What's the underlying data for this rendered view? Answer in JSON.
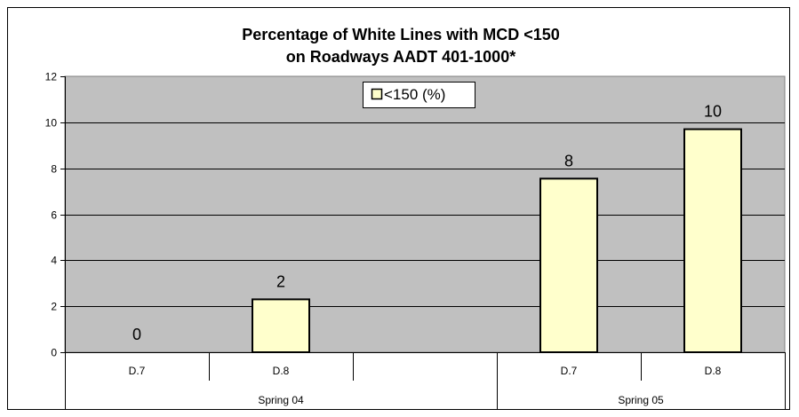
{
  "chart_data": {
    "type": "bar",
    "title_line1": "Percentage of White Lines with MCD <150",
    "title_line2": "on Roadways AADT 401-1000*",
    "legend": {
      "label": "<150 (%)",
      "placement": "top-center"
    },
    "series": [
      {
        "name": "<150 (%)",
        "color": "#ffffcc",
        "values": [
          0.0,
          2.3,
          null,
          7.55,
          9.7
        ]
      }
    ],
    "data_labels": [
      "0",
      "2",
      "",
      "8",
      "10"
    ],
    "categories": [
      "D.7",
      "D.8",
      "",
      "D.7",
      "D.8"
    ],
    "groups": [
      {
        "label": "Spring 04",
        "span": 3
      },
      {
        "label": "Spring 05",
        "span": 2
      }
    ],
    "yticks": [
      "0",
      "2",
      "4",
      "6",
      "8",
      "10",
      "12"
    ],
    "ylim": [
      0,
      12
    ],
    "grid": true,
    "plot_bg": "#c0c0c0"
  }
}
